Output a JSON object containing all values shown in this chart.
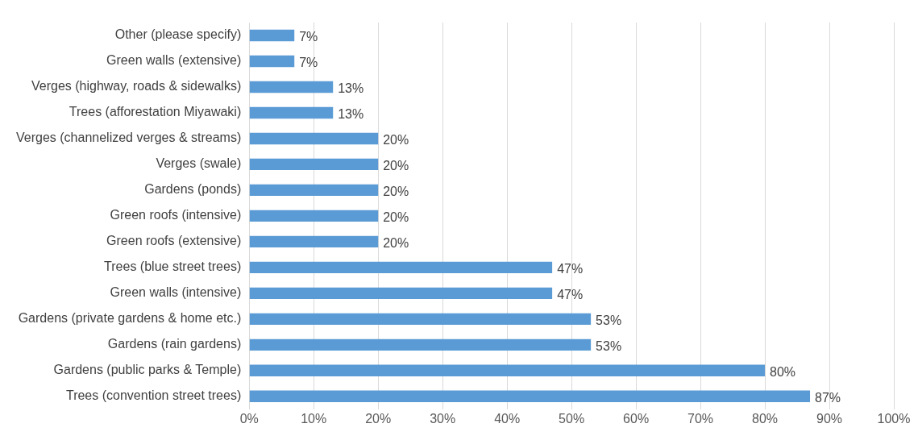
{
  "chart_data": {
    "type": "bar",
    "orientation": "horizontal",
    "categories": [
      "Other (please specify)",
      "Green walls (extensive)",
      "Verges (highway, roads & sidewalks)",
      "Trees (afforestation Miyawaki)",
      "Verges (channelized verges & streams)",
      "Verges (swale)",
      "Gardens (ponds)",
      "Green roofs (intensive)",
      "Green roofs (extensive)",
      "Trees (blue street trees)",
      "Green walls (intensive)",
      "Gardens (private gardens & home etc.)",
      "Gardens (rain gardens)",
      "Gardens (public parks & Temple)",
      "Trees (convention street trees)"
    ],
    "values": [
      7,
      7,
      13,
      13,
      20,
      20,
      20,
      20,
      20,
      47,
      47,
      53,
      53,
      80,
      87
    ],
    "value_labels": [
      "7%",
      "7%",
      "13%",
      "13%",
      "20%",
      "20%",
      "20%",
      "20%",
      "20%",
      "47%",
      "47%",
      "53%",
      "53%",
      "80%",
      "87%"
    ],
    "color": "#5b9bd5",
    "xlim": [
      0,
      100
    ],
    "xticks": [
      {
        "value": 0,
        "label": "0%"
      },
      {
        "value": 10,
        "label": "10%"
      },
      {
        "value": 20,
        "label": "20%"
      },
      {
        "value": 30,
        "label": "30%"
      },
      {
        "value": 40,
        "label": "40%"
      },
      {
        "value": 50,
        "label": "50%"
      },
      {
        "value": 60,
        "label": "60%"
      },
      {
        "value": 70,
        "label": "70%"
      },
      {
        "value": 80,
        "label": "80%"
      },
      {
        "value": 90,
        "label": "90%"
      },
      {
        "value": 100,
        "label": "100%"
      }
    ],
    "grid": "x",
    "legend": false
  }
}
